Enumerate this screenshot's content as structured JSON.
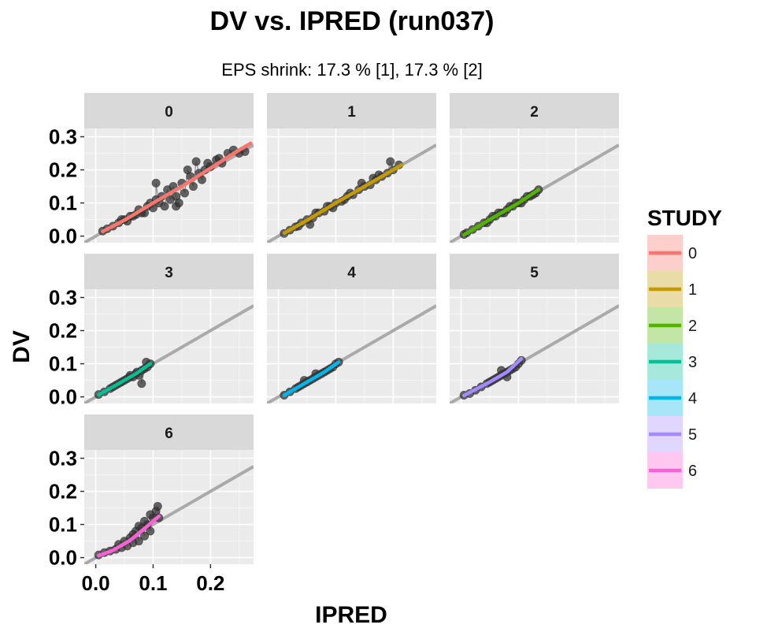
{
  "chart_data": {
    "type": "scatter",
    "title": "DV vs. IPRED (run037)",
    "subtitle": "EPS shrink: 17.3 % [1], 17.3 % [2]",
    "xlabel": "IPRED",
    "ylabel": "DV",
    "xlim": [
      -0.02,
      0.275
    ],
    "ylim": [
      -0.02,
      0.325
    ],
    "x_ticks": [
      "0.0",
      "0.1",
      "0.2"
    ],
    "y_ticks": [
      "0.0",
      "0.1",
      "0.2",
      "0.3"
    ],
    "legend_title": "STUDY",
    "legend_position": "right",
    "grid": true,
    "identity_line": true,
    "panels": [
      {
        "label": "0",
        "color": "#F8766D",
        "points": [
          [
            0.012,
            0.015
          ],
          [
            0.02,
            0.022
          ],
          [
            0.03,
            0.03
          ],
          [
            0.04,
            0.04
          ],
          [
            0.05,
            0.05
          ],
          [
            0.055,
            0.045
          ],
          [
            0.06,
            0.06
          ],
          [
            0.07,
            0.065
          ],
          [
            0.075,
            0.08
          ],
          [
            0.08,
            0.07
          ],
          [
            0.09,
            0.09
          ],
          [
            0.095,
            0.1
          ],
          [
            0.1,
            0.085
          ],
          [
            0.105,
            0.11
          ],
          [
            0.11,
            0.1
          ],
          [
            0.115,
            0.12
          ],
          [
            0.12,
            0.09
          ],
          [
            0.125,
            0.14
          ],
          [
            0.13,
            0.11
          ],
          [
            0.135,
            0.15
          ],
          [
            0.14,
            0.12
          ],
          [
            0.145,
            0.1
          ],
          [
            0.15,
            0.16
          ],
          [
            0.155,
            0.13
          ],
          [
            0.16,
            0.2
          ],
          [
            0.165,
            0.18
          ],
          [
            0.17,
            0.15
          ],
          [
            0.18,
            0.19
          ],
          [
            0.19,
            0.2
          ],
          [
            0.2,
            0.21
          ],
          [
            0.21,
            0.23
          ],
          [
            0.22,
            0.22
          ],
          [
            0.23,
            0.25
          ],
          [
            0.24,
            0.26
          ],
          [
            0.25,
            0.25
          ],
          [
            0.26,
            0.255
          ],
          [
            0.175,
            0.225
          ],
          [
            0.105,
            0.16
          ],
          [
            0.14,
            0.09
          ],
          [
            0.085,
            0.07
          ],
          [
            0.065,
            0.06
          ],
          [
            0.045,
            0.05
          ],
          [
            0.185,
            0.17
          ],
          [
            0.195,
            0.22
          ],
          [
            0.215,
            0.235
          ]
        ],
        "trend": [
          [
            0.012,
            0.014
          ],
          [
            0.05,
            0.048
          ],
          [
            0.1,
            0.1
          ],
          [
            0.15,
            0.15
          ],
          [
            0.2,
            0.205
          ],
          [
            0.25,
            0.26
          ],
          [
            0.27,
            0.28
          ]
        ]
      },
      {
        "label": "1",
        "color": "#C49A00",
        "points": [
          [
            0.01,
            0.008
          ],
          [
            0.02,
            0.018
          ],
          [
            0.03,
            0.028
          ],
          [
            0.04,
            0.04
          ],
          [
            0.05,
            0.05
          ],
          [
            0.06,
            0.055
          ],
          [
            0.07,
            0.07
          ],
          [
            0.08,
            0.075
          ],
          [
            0.09,
            0.09
          ],
          [
            0.1,
            0.1
          ],
          [
            0.11,
            0.105
          ],
          [
            0.12,
            0.12
          ],
          [
            0.13,
            0.125
          ],
          [
            0.14,
            0.14
          ],
          [
            0.15,
            0.15
          ],
          [
            0.16,
            0.155
          ],
          [
            0.17,
            0.17
          ],
          [
            0.18,
            0.18
          ],
          [
            0.19,
            0.19
          ],
          [
            0.2,
            0.2
          ],
          [
            0.21,
            0.215
          ],
          [
            0.055,
            0.035
          ],
          [
            0.085,
            0.09
          ],
          [
            0.115,
            0.11
          ],
          [
            0.145,
            0.16
          ],
          [
            0.175,
            0.185
          ],
          [
            0.195,
            0.225
          ],
          [
            0.165,
            0.175
          ],
          [
            0.125,
            0.13
          ],
          [
            0.095,
            0.085
          ],
          [
            0.065,
            0.07
          ],
          [
            0.035,
            0.03
          ]
        ],
        "trend": [
          [
            0.01,
            0.009
          ],
          [
            0.05,
            0.048
          ],
          [
            0.1,
            0.1
          ],
          [
            0.15,
            0.15
          ],
          [
            0.2,
            0.2
          ],
          [
            0.215,
            0.215
          ]
        ]
      },
      {
        "label": "2",
        "color": "#53B400",
        "points": [
          [
            0.005,
            0.005
          ],
          [
            0.01,
            0.01
          ],
          [
            0.02,
            0.02
          ],
          [
            0.03,
            0.03
          ],
          [
            0.04,
            0.04
          ],
          [
            0.05,
            0.05
          ],
          [
            0.06,
            0.06
          ],
          [
            0.07,
            0.07
          ],
          [
            0.08,
            0.08
          ],
          [
            0.09,
            0.09
          ],
          [
            0.1,
            0.1
          ],
          [
            0.11,
            0.11
          ],
          [
            0.12,
            0.12
          ],
          [
            0.13,
            0.13
          ],
          [
            0.135,
            0.14
          ],
          [
            0.045,
            0.04
          ],
          [
            0.055,
            0.06
          ],
          [
            0.065,
            0.07
          ],
          [
            0.075,
            0.07
          ],
          [
            0.085,
            0.09
          ],
          [
            0.095,
            0.1
          ],
          [
            0.105,
            0.1
          ],
          [
            0.115,
            0.12
          ],
          [
            0.125,
            0.125
          ]
        ],
        "trend": [
          [
            0.005,
            0.004
          ],
          [
            0.05,
            0.05
          ],
          [
            0.1,
            0.1
          ],
          [
            0.135,
            0.14
          ]
        ]
      },
      {
        "label": "3",
        "color": "#00C094",
        "points": [
          [
            0.005,
            0.007
          ],
          [
            0.015,
            0.015
          ],
          [
            0.025,
            0.025
          ],
          [
            0.035,
            0.035
          ],
          [
            0.045,
            0.045
          ],
          [
            0.05,
            0.05
          ],
          [
            0.055,
            0.055
          ],
          [
            0.06,
            0.06
          ],
          [
            0.065,
            0.06
          ],
          [
            0.07,
            0.07
          ],
          [
            0.075,
            0.065
          ],
          [
            0.08,
            0.08
          ],
          [
            0.085,
            0.085
          ],
          [
            0.09,
            0.09
          ],
          [
            0.095,
            0.1
          ],
          [
            0.08,
            0.04
          ],
          [
            0.04,
            0.04
          ],
          [
            0.03,
            0.03
          ],
          [
            0.06,
            0.065
          ],
          [
            0.088,
            0.105
          ],
          [
            0.072,
            0.075
          ]
        ],
        "trend": [
          [
            0.005,
            0.006
          ],
          [
            0.04,
            0.04
          ],
          [
            0.07,
            0.07
          ],
          [
            0.095,
            0.1
          ]
        ]
      },
      {
        "label": "4",
        "color": "#00B6EB",
        "points": [
          [
            0.01,
            0.005
          ],
          [
            0.02,
            0.015
          ],
          [
            0.03,
            0.025
          ],
          [
            0.035,
            0.03
          ],
          [
            0.04,
            0.035
          ],
          [
            0.045,
            0.04
          ],
          [
            0.05,
            0.045
          ],
          [
            0.055,
            0.05
          ],
          [
            0.06,
            0.055
          ],
          [
            0.065,
            0.06
          ],
          [
            0.07,
            0.065
          ],
          [
            0.075,
            0.07
          ],
          [
            0.08,
            0.075
          ],
          [
            0.085,
            0.08
          ],
          [
            0.09,
            0.085
          ],
          [
            0.095,
            0.09
          ],
          [
            0.1,
            0.1
          ],
          [
            0.105,
            0.105
          ],
          [
            0.045,
            0.05
          ],
          [
            0.065,
            0.07
          ]
        ],
        "trend": [
          [
            0.01,
            0.005
          ],
          [
            0.05,
            0.045
          ],
          [
            0.08,
            0.075
          ],
          [
            0.105,
            0.105
          ]
        ]
      },
      {
        "label": "5",
        "color": "#A58AFF",
        "points": [
          [
            0.005,
            0.005
          ],
          [
            0.015,
            0.01
          ],
          [
            0.025,
            0.02
          ],
          [
            0.035,
            0.03
          ],
          [
            0.045,
            0.04
          ],
          [
            0.05,
            0.045
          ],
          [
            0.055,
            0.05
          ],
          [
            0.06,
            0.055
          ],
          [
            0.065,
            0.06
          ],
          [
            0.07,
            0.065
          ],
          [
            0.075,
            0.07
          ],
          [
            0.08,
            0.075
          ],
          [
            0.085,
            0.08
          ],
          [
            0.09,
            0.085
          ],
          [
            0.095,
            0.09
          ],
          [
            0.1,
            0.1
          ],
          [
            0.105,
            0.11
          ],
          [
            0.07,
            0.08
          ],
          [
            0.08,
            0.06
          ]
        ],
        "trend": [
          [
            0.005,
            0.004
          ],
          [
            0.05,
            0.045
          ],
          [
            0.08,
            0.075
          ],
          [
            0.105,
            0.115
          ]
        ]
      },
      {
        "label": "6",
        "color": "#FB61D7",
        "points": [
          [
            0.005,
            0.008
          ],
          [
            0.015,
            0.015
          ],
          [
            0.025,
            0.02
          ],
          [
            0.035,
            0.025
          ],
          [
            0.04,
            0.04
          ],
          [
            0.045,
            0.03
          ],
          [
            0.05,
            0.05
          ],
          [
            0.055,
            0.035
          ],
          [
            0.06,
            0.06
          ],
          [
            0.065,
            0.045
          ],
          [
            0.07,
            0.08
          ],
          [
            0.075,
            0.05
          ],
          [
            0.08,
            0.09
          ],
          [
            0.085,
            0.065
          ],
          [
            0.09,
            0.1
          ],
          [
            0.095,
            0.08
          ],
          [
            0.1,
            0.12
          ],
          [
            0.105,
            0.14
          ],
          [
            0.108,
            0.155
          ],
          [
            0.095,
            0.13
          ],
          [
            0.085,
            0.11
          ],
          [
            0.075,
            0.095
          ],
          [
            0.065,
            0.07
          ],
          [
            0.11,
            0.12
          ]
        ],
        "trend": [
          [
            0.005,
            0.006
          ],
          [
            0.03,
            0.022
          ],
          [
            0.06,
            0.052
          ],
          [
            0.09,
            0.095
          ],
          [
            0.11,
            0.125
          ]
        ]
      }
    ]
  }
}
